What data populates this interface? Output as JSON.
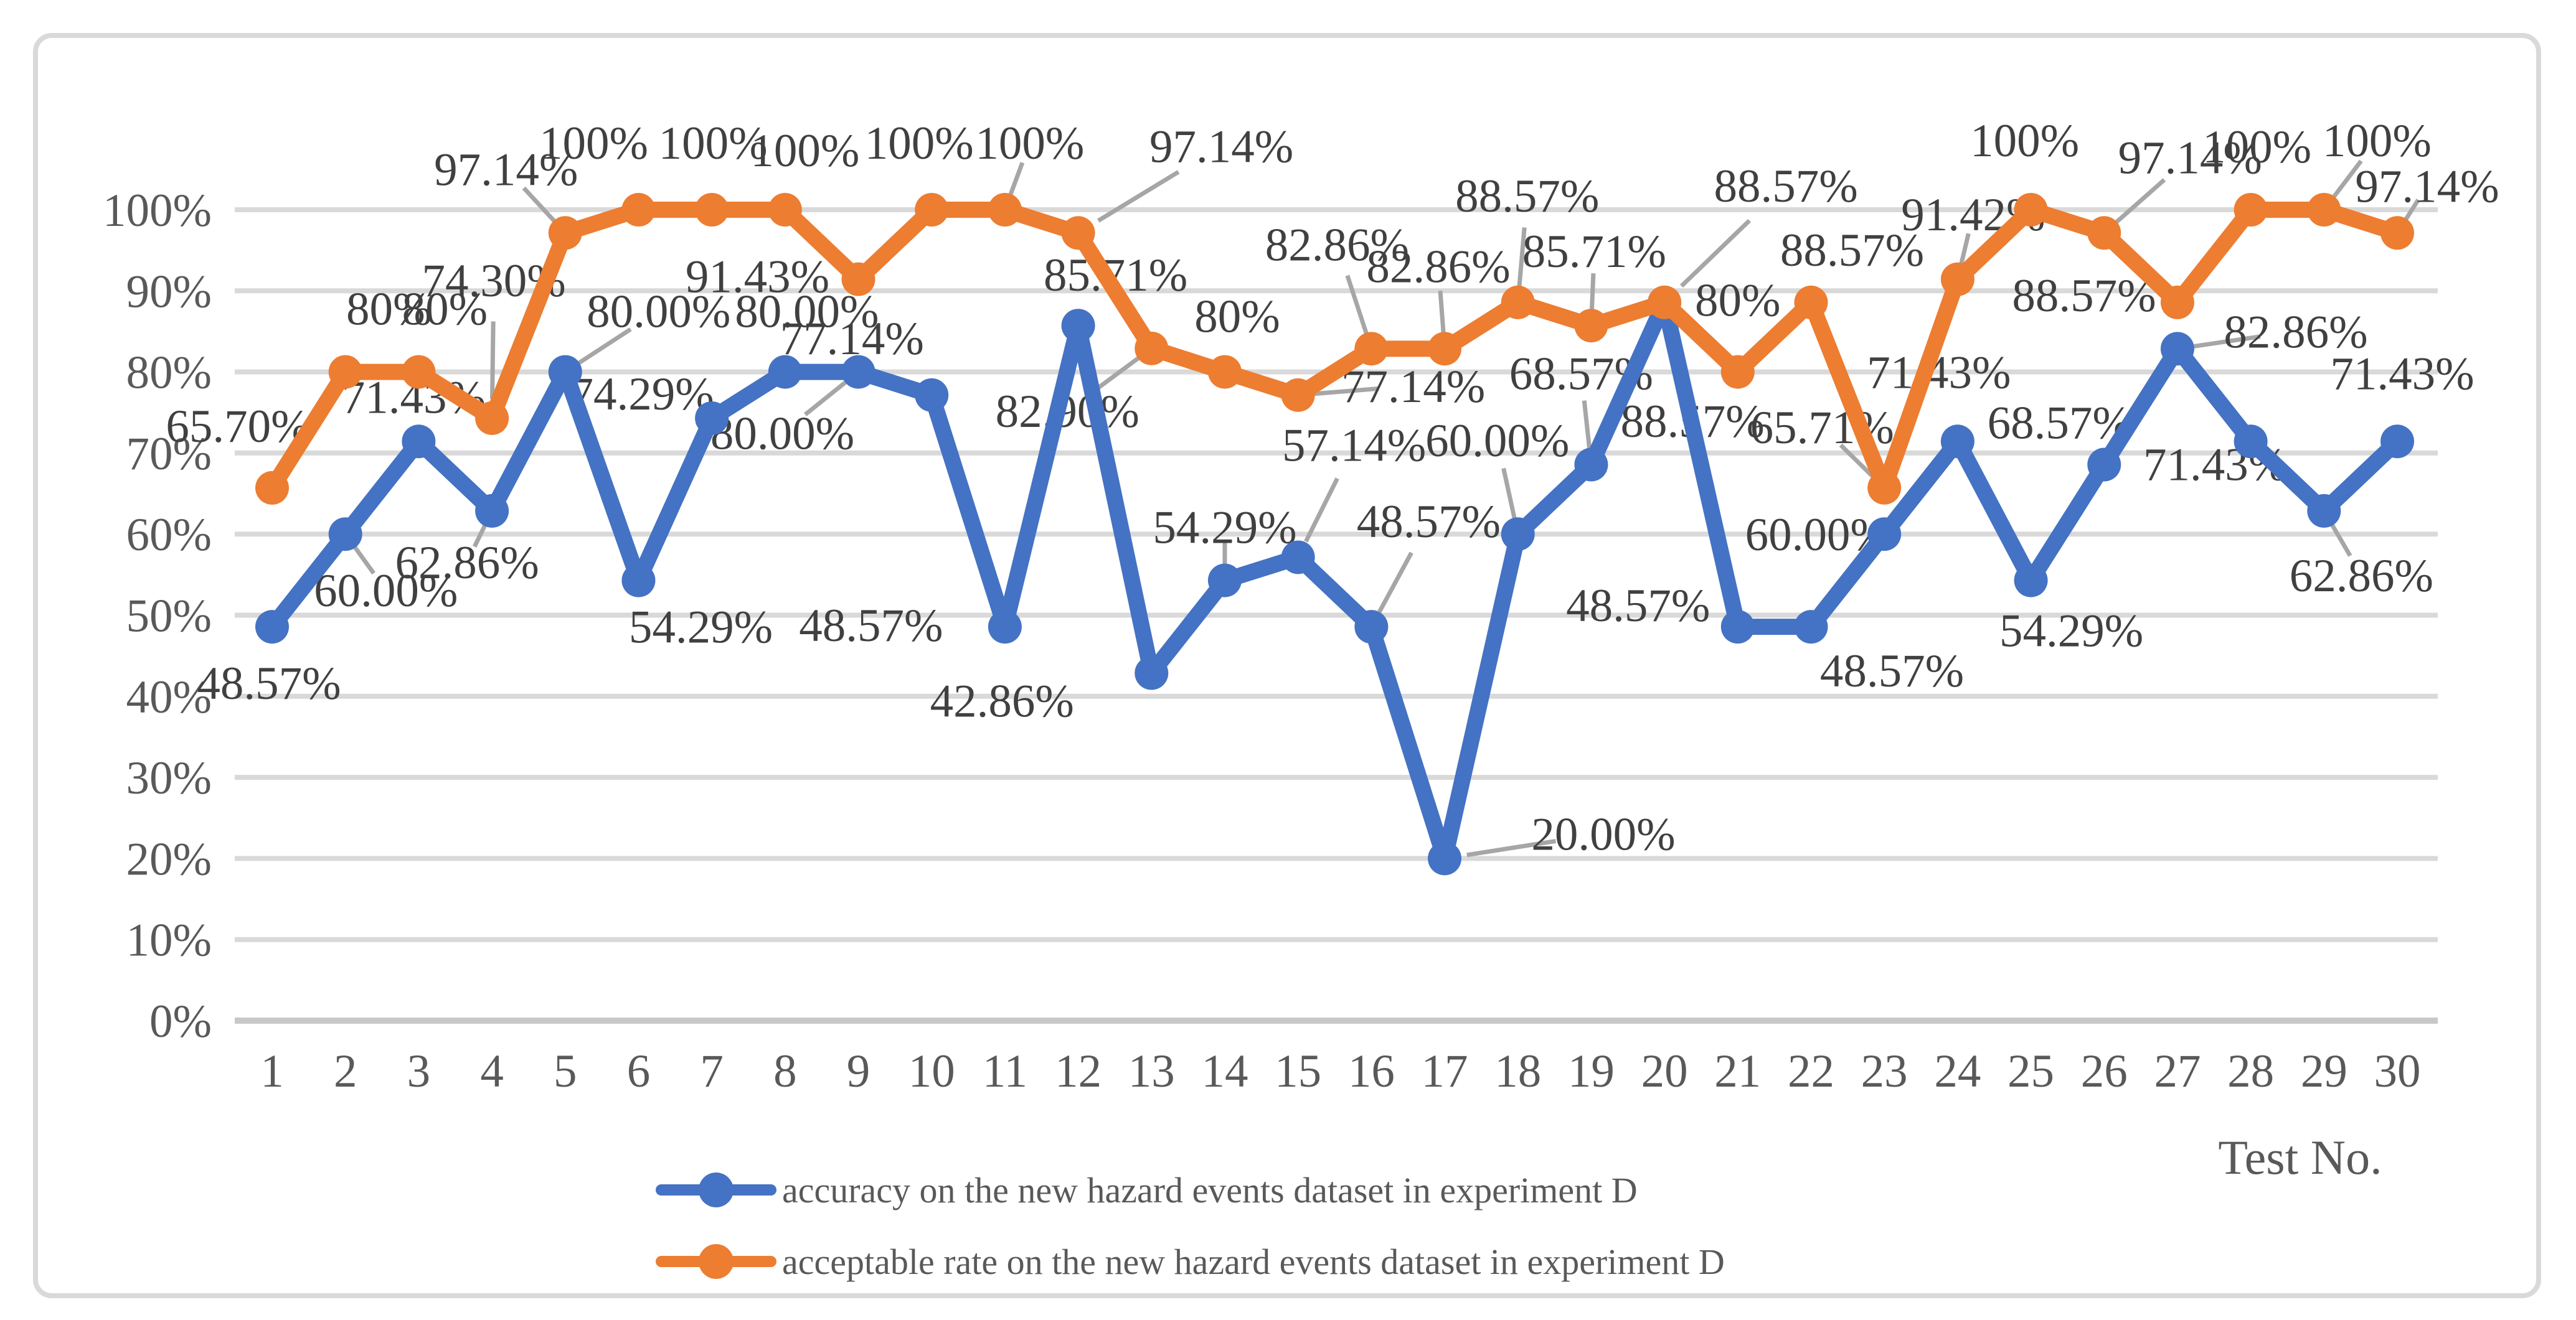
{
  "chart_data": {
    "type": "line",
    "x_categories": [
      "1",
      "2",
      "3",
      "4",
      "5",
      "6",
      "7",
      "8",
      "9",
      "10",
      "11",
      "12",
      "13",
      "14",
      "15",
      "16",
      "17",
      "18",
      "19",
      "20",
      "21",
      "22",
      "23",
      "24",
      "25",
      "26",
      "27",
      "28",
      "29",
      "30"
    ],
    "xlabel": "Test No.",
    "y_ticks": [
      "0%",
      "10%",
      "20%",
      "30%",
      "40%",
      "50%",
      "60%",
      "70%",
      "80%",
      "90%",
      "100%"
    ],
    "ylim": [
      0,
      100
    ],
    "grid": "horizontal",
    "legend_position": "bottom",
    "series": [
      {
        "name": "accuracy on the new hazard events dataset in experiment D",
        "color": "#4472C4",
        "values": [
          48.57,
          60.0,
          71.43,
          62.86,
          80.0,
          54.29,
          74.29,
          80.0,
          80.0,
          77.14,
          48.57,
          85.71,
          42.86,
          54.29,
          57.14,
          48.57,
          20.0,
          60.0,
          68.57,
          88.57,
          48.57,
          48.57,
          60.0,
          71.43,
          54.29,
          68.57,
          82.86,
          71.43,
          62.86,
          71.43
        ],
        "labels": [
          "48.57%",
          "60.00%",
          "71.43%",
          "62.86%",
          "80.00%",
          "54.29%",
          "74.29%",
          "80.00%",
          "80.00%",
          "77.14%",
          "48.57%",
          "85.71%",
          "42.86%",
          "54.29%",
          "57.14%",
          "48.57%",
          "20.00%",
          "60.00%",
          "68.57%",
          "88.57%",
          "48.57%",
          "48.57%",
          "60.00%",
          "71.43%",
          "54.29%",
          "68.57%",
          "82.86%",
          "71.43%",
          "62.86%",
          "71.43%"
        ],
        "label_layout": [
          [
            -5,
            90,
            0
          ],
          [
            65,
            90,
            1
          ],
          [
            -8,
            -72,
            0
          ],
          [
            -40,
            82,
            1
          ],
          [
            150,
            -98,
            1
          ],
          [
            100,
            74,
            0
          ],
          [
            -112,
            -40,
            0
          ],
          [
            35,
            -98,
            0
          ],
          [
            -122,
            98,
            1
          ],
          [
            -128,
            -92,
            0
          ],
          [
            -215,
            -3,
            0
          ],
          [
            60,
            -82,
            0
          ],
          [
            -240,
            44,
            0
          ],
          [
            0,
            -86,
            1
          ],
          [
            90,
            -181,
            1
          ],
          [
            92,
            -170,
            1
          ],
          [
            255,
            -40,
            1
          ],
          [
            -33,
            -151,
            1
          ],
          [
            -16,
            -147,
            1
          ],
          [
            45,
            190,
            1
          ],
          [
            -160,
            -35,
            0
          ],
          [
            130,
            70,
            0
          ],
          [
            -108,
            0,
            0
          ],
          [
            -30,
            -112,
            0
          ],
          [
            65,
            80,
            0
          ],
          [
            -72,
            -68,
            0
          ],
          [
            190,
            -28,
            1
          ],
          [
            -57,
            36,
            0
          ],
          [
            60,
            103,
            1
          ],
          [
            8,
            -110,
            0
          ]
        ]
      },
      {
        "name": "acceptable rate on the new hazard events dataset in experiment D",
        "color": "#ED7D31",
        "values": [
          65.7,
          80,
          80,
          74.3,
          97.14,
          100,
          100,
          100,
          91.43,
          100,
          100,
          97.14,
          82.9,
          80,
          77.14,
          82.86,
          82.86,
          88.57,
          85.71,
          88.57,
          80,
          88.57,
          65.71,
          91.42,
          100,
          97.14,
          88.57,
          100,
          100,
          97.14
        ],
        "labels": [
          "65.70%",
          "80%",
          "80%",
          "74.30%",
          "97.14%",
          "100%",
          "100%",
          "100%",
          "91.43%",
          "100%",
          "100%",
          "97.14%",
          "82.90%",
          "80%",
          "77.14%",
          "82.86%",
          "82.86%",
          "88.57%",
          "85.71%",
          "88.57%",
          "80%",
          "88.57%",
          "65.71%",
          "91.42%",
          "100%",
          "97.14%",
          "88.57%",
          "100%",
          "100%",
          "97.14%"
        ],
        "label_layout": [
          [
            -55,
            -100,
            0
          ],
          [
            70,
            -102,
            0
          ],
          [
            42,
            -102,
            0
          ],
          [
            3,
            -222,
            1
          ],
          [
            -95,
            -103,
            1
          ],
          [
            -72,
            -108,
            0
          ],
          [
            2,
            -108,
            0
          ],
          [
            32,
            -96,
            0
          ],
          [
            -162,
            -5,
            0
          ],
          [
            -20,
            -108,
            0
          ],
          [
            40,
            -108,
            1
          ],
          [
            230,
            -140,
            1
          ],
          [
            -135,
            100,
            1
          ],
          [
            20,
            -90,
            0
          ],
          [
            185,
            -15,
            1
          ],
          [
            -55,
            -168,
            1
          ],
          [
            -10,
            -133,
            1
          ],
          [
            15,
            -172,
            1
          ],
          [
            5,
            -120,
            1
          ],
          [
            195,
            -188,
            1
          ],
          [
            0,
            -116,
            0
          ],
          [
            66,
            -85,
            0
          ],
          [
            -100,
            -98,
            1
          ],
          [
            25,
            -105,
            1
          ],
          [
            -10,
            -112,
            0
          ],
          [
            138,
            -122,
            1
          ],
          [
            -150,
            -12,
            0
          ],
          [
            10,
            -102,
            0
          ],
          [
            85,
            -112,
            1
          ],
          [
            48,
            -76,
            1
          ]
        ]
      }
    ],
    "colors": {
      "gridline": "#D9D9D9",
      "axis_line": "#C8C8C8",
      "axis_text": "#595959",
      "data_label": "#404040",
      "leader": "#A6A6A6",
      "border": "#D9D9D9",
      "background": "#FFFFFF"
    }
  }
}
